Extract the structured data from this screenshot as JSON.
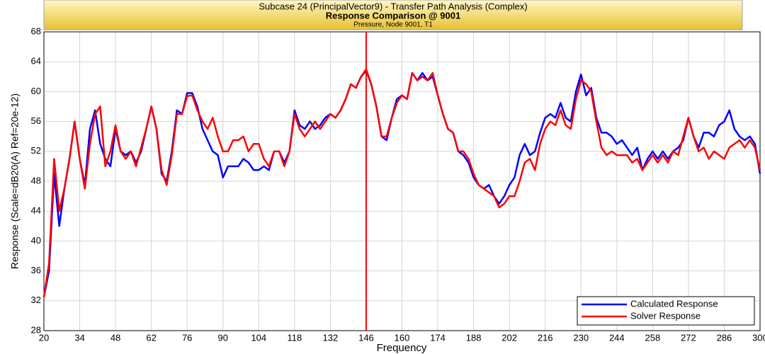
{
  "chart_data": {
    "type": "line",
    "title": "Subcase 24 (PrincipalVector9)  -  Transfer Path Analysis (Complex)",
    "subtitle": "Response Comparison @ 9001",
    "caption": "Pressure, Node 9001, T1",
    "xlabel": "Frequency",
    "ylabel": "Response (Scale=dB20(A) Ref=20e-12)",
    "xlim": [
      20,
      300
    ],
    "ylim": [
      28,
      68
    ],
    "xticks": [
      20,
      34,
      48,
      62,
      76,
      90,
      104,
      118,
      132,
      146,
      160,
      174,
      188,
      202,
      216,
      230,
      244,
      258,
      272,
      286,
      300
    ],
    "yticks": [
      28,
      32,
      36,
      40,
      44,
      48,
      52,
      56,
      60,
      64,
      68
    ],
    "grid": true,
    "legend": "lower right",
    "cursor_x": 146,
    "cursor_color": "#ff0000",
    "x": [
      20,
      22,
      24,
      26,
      28,
      30,
      32,
      34,
      36,
      38,
      40,
      42,
      44,
      46,
      48,
      50,
      52,
      54,
      56,
      58,
      60,
      62,
      64,
      66,
      68,
      70,
      72,
      74,
      76,
      78,
      80,
      82,
      84,
      86,
      88,
      90,
      92,
      94,
      96,
      98,
      100,
      102,
      104,
      106,
      108,
      110,
      112,
      114,
      116,
      118,
      120,
      122,
      124,
      126,
      128,
      130,
      132,
      134,
      136,
      138,
      140,
      142,
      144,
      146,
      148,
      150,
      152,
      154,
      156,
      158,
      160,
      162,
      164,
      166,
      168,
      170,
      172,
      174,
      176,
      178,
      180,
      182,
      184,
      186,
      188,
      190,
      192,
      194,
      196,
      198,
      200,
      202,
      204,
      206,
      208,
      210,
      212,
      214,
      216,
      218,
      220,
      222,
      224,
      226,
      228,
      230,
      232,
      234,
      236,
      238,
      240,
      242,
      244,
      246,
      248,
      250,
      252,
      254,
      256,
      258,
      260,
      262,
      264,
      266,
      268,
      270,
      272,
      274,
      276,
      278,
      280,
      282,
      284,
      286,
      288,
      290,
      292,
      294,
      296,
      298,
      300
    ],
    "series": [
      {
        "name": "Calculated Response",
        "color": "#0000ff",
        "values": [
          32.5,
          36,
          49,
          42,
          47,
          51,
          56,
          51,
          47.5,
          55,
          57.5,
          53,
          51,
          50,
          55,
          52,
          51.5,
          52,
          50.5,
          52,
          55,
          58,
          55,
          49,
          48,
          52,
          57.5,
          57,
          59.8,
          59.8,
          58,
          55,
          53.5,
          52,
          51.5,
          48.5,
          50,
          50,
          50,
          51,
          50.5,
          49.5,
          49.5,
          50,
          49.5,
          52,
          52,
          50.5,
          52,
          57.5,
          55.5,
          55,
          56,
          55,
          55.5,
          56.5,
          57,
          56.5,
          57.5,
          59,
          61,
          60.5,
          62,
          62.8,
          61,
          58,
          54,
          53.5,
          56.5,
          59,
          59.5,
          59,
          62.5,
          61.5,
          62.5,
          61.5,
          62,
          59.5,
          57,
          55,
          54.5,
          52,
          51.5,
          50.5,
          48.5,
          47.5,
          47,
          47.5,
          46,
          45,
          46,
          47.5,
          48.5,
          51.5,
          53,
          51.5,
          52,
          54.5,
          56.5,
          57,
          56.5,
          58.5,
          56.5,
          56,
          60,
          62.3,
          59.5,
          60.5,
          56.5,
          54.5,
          54.5,
          54,
          53,
          53.5,
          52.5,
          51.5,
          52.5,
          49.5,
          51,
          52,
          51,
          52,
          51,
          52,
          52.5,
          53.5,
          56.5,
          54,
          52.5,
          54.5,
          54.5,
          54,
          55.5,
          56,
          57.5,
          55,
          54,
          53.5,
          54,
          53,
          49
        ]
      },
      {
        "name": "Solver Response",
        "color": "#ff0000",
        "values": [
          32.5,
          37,
          51,
          44,
          47,
          51,
          56,
          51,
          47,
          53,
          57,
          58,
          50,
          52,
          55.5,
          52,
          51,
          52,
          50,
          52.5,
          55,
          58,
          55,
          49.5,
          47.5,
          51.5,
          57,
          57,
          59.4,
          59.5,
          57.5,
          56,
          55,
          56.5,
          54,
          52,
          52,
          53.5,
          53.5,
          54,
          52,
          53,
          53,
          51,
          50,
          52,
          52,
          50,
          52,
          57,
          55,
          54,
          55,
          56,
          55,
          56,
          57,
          56.5,
          57.5,
          59,
          61,
          60.5,
          62,
          63,
          61,
          58,
          54,
          54,
          56.5,
          58.5,
          59.5,
          59,
          62.5,
          61.5,
          62,
          61.5,
          62.5,
          59.5,
          57,
          55,
          54.5,
          52,
          52,
          51,
          49,
          47.5,
          47,
          46.5,
          46,
          44.5,
          45,
          46,
          46,
          48,
          50.5,
          51,
          49.5,
          53,
          55,
          56,
          55.5,
          57.5,
          55.5,
          55,
          59,
          61.5,
          61,
          60,
          56,
          52.5,
          51.5,
          52,
          51.5,
          51.5,
          51.5,
          50.5,
          51,
          49.5,
          50.5,
          51.5,
          50.5,
          51.5,
          50.5,
          52,
          51.5,
          54,
          56.5,
          54,
          52,
          52.5,
          51,
          52,
          51.5,
          51,
          52.5,
          53,
          53.5,
          52.5,
          53.5,
          52.5,
          49.5
        ]
      }
    ]
  }
}
